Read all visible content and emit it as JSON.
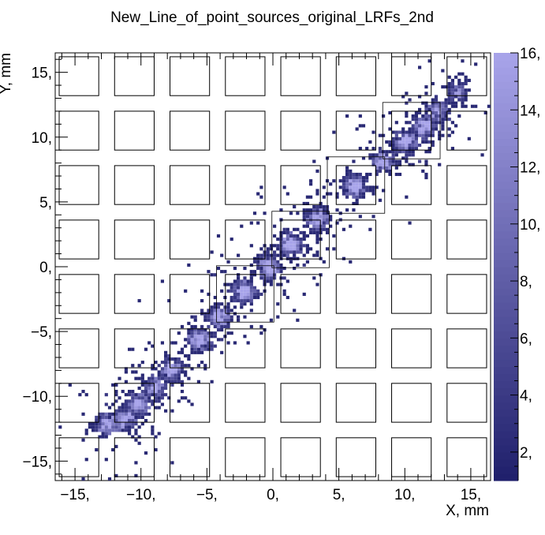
{
  "chart_data": {
    "type": "heatmap",
    "title": "New_Line_of_point_sources_original_LRFs_2nd",
    "xlabel": "X, mm",
    "ylabel": "Y, mm",
    "xlim": [
      -16.5,
      16.5
    ],
    "ylim": [
      -16.5,
      16.5
    ],
    "x_ticks": [
      -15,
      -10,
      -5,
      0,
      5,
      10,
      15
    ],
    "x_tick_labels": [
      "−15,",
      "−10,",
      "−5,",
      "0,",
      "5,",
      "10,",
      "15,"
    ],
    "y_ticks": [
      -15,
      -10,
      -5,
      0,
      5,
      10,
      15
    ],
    "y_tick_labels": [
      "−15,",
      "−10,",
      "−5,",
      "0,",
      "5,",
      "10,",
      "15,"
    ],
    "z_range": [
      1,
      16
    ],
    "z_ticks": [
      2,
      4,
      6,
      8,
      10,
      12,
      14,
      16
    ],
    "z_tick_labels": [
      "2,",
      "4,",
      "6,",
      "8,",
      "10,",
      "12,",
      "14,",
      "16,"
    ],
    "palette": {
      "low": "#1f1f6b",
      "high": "#a8a4ea"
    },
    "sensor_grid": {
      "centers": [
        -14.7,
        -10.5,
        -6.3,
        -2.1,
        2.1,
        6.3,
        10.5,
        14.7
      ],
      "size": 3.0
    },
    "highlighted_cells": [
      [
        -2.1,
        -2.1
      ],
      [
        2.1,
        2.1
      ],
      [
        6.3,
        6.3
      ],
      [
        10.5,
        10.5
      ]
    ],
    "clusters": [
      {
        "x": -12.6,
        "y": -12.2,
        "peak": 10
      },
      {
        "x": -11.3,
        "y": -11.8,
        "peak": 12
      },
      {
        "x": -10.2,
        "y": -10.6,
        "peak": 11
      },
      {
        "x": -9.0,
        "y": -9.4,
        "peak": 10
      },
      {
        "x": -7.7,
        "y": -8.0,
        "peak": 12
      },
      {
        "x": -5.5,
        "y": -5.6,
        "peak": 14
      },
      {
        "x": -4.1,
        "y": -3.9,
        "peak": 13
      },
      {
        "x": -2.2,
        "y": -1.9,
        "peak": 14
      },
      {
        "x": -0.3,
        "y": 0.0,
        "peak": 15
      },
      {
        "x": 1.3,
        "y": 1.7,
        "peak": 14
      },
      {
        "x": 3.4,
        "y": 3.7,
        "peak": 13
      },
      {
        "x": 6.2,
        "y": 6.2,
        "peak": 14
      },
      {
        "x": 8.4,
        "y": 8.1,
        "peak": 12
      },
      {
        "x": 10.1,
        "y": 9.6,
        "peak": 13
      },
      {
        "x": 11.5,
        "y": 10.8,
        "peak": 12
      },
      {
        "x": 12.5,
        "y": 12.0,
        "peak": 9
      },
      {
        "x": 14.0,
        "y": 13.5,
        "peak": 6
      }
    ]
  }
}
